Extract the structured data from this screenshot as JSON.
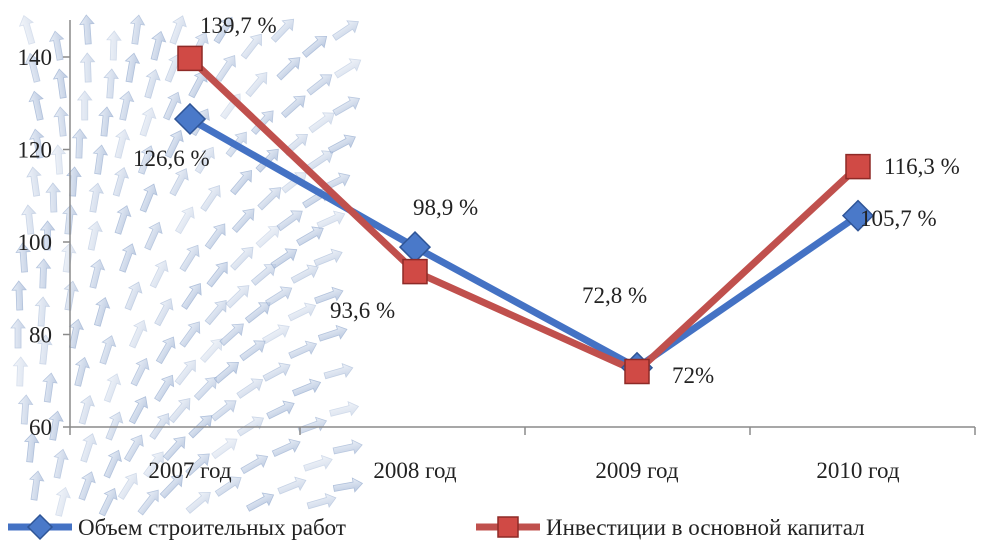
{
  "chart_data": {
    "type": "line",
    "categories": [
      "2007 год",
      "2008 год",
      "2009 год",
      "2010 год"
    ],
    "ylim": [
      60,
      140
    ],
    "yticks": [
      "60",
      "80",
      "100",
      "120",
      "140"
    ],
    "legend_position": "bottom",
    "series": [
      {
        "name": "Объем строительных работ",
        "values": [
          126.6,
          98.9,
          72.8,
          105.7
        ],
        "labels": [
          "126,6 %",
          "98,9 %",
          "72,8 %",
          "105,7 %"
        ],
        "color": "#4472C4",
        "marker": "diamond"
      },
      {
        "name": "Инвестиции в основной капитал",
        "values": [
          139.7,
          93.6,
          72,
          116.3
        ],
        "labels": [
          "139,7 %",
          "93,6 %",
          "72%",
          "116,3 %"
        ],
        "color": "#C0504D",
        "marker": "square"
      }
    ]
  }
}
